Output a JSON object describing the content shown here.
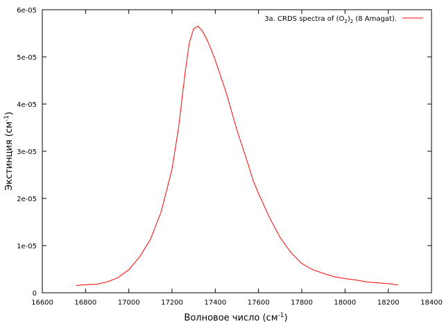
{
  "chart_data": {
    "type": "line",
    "xlabel": "Волновое число (см",
    "xlabel_sup": "-1",
    "xlabel_close": ")",
    "ylabel": "Экстинция (см",
    "ylabel_sup": "-1",
    "ylabel_close": ")",
    "xlim": [
      16600,
      18400
    ],
    "ylim": [
      0,
      6e-05
    ],
    "x_ticks": [
      {
        "value": 16600,
        "label": "16600"
      },
      {
        "value": 16800,
        "label": "16800"
      },
      {
        "value": 17000,
        "label": "17000"
      },
      {
        "value": 17200,
        "label": "17200"
      },
      {
        "value": 17400,
        "label": "17400"
      },
      {
        "value": 17600,
        "label": "17600"
      },
      {
        "value": 17800,
        "label": "17800"
      },
      {
        "value": 18000,
        "label": "18000"
      },
      {
        "value": 18200,
        "label": "18200"
      },
      {
        "value": 18400,
        "label": "18400"
      }
    ],
    "y_ticks": [
      {
        "value": 0,
        "label": "0"
      },
      {
        "value": 1e-05,
        "label": "1e-05"
      },
      {
        "value": 2e-05,
        "label": "2e-05"
      },
      {
        "value": 3e-05,
        "label": "3e-05"
      },
      {
        "value": 4e-05,
        "label": "4e-05"
      },
      {
        "value": 5e-05,
        "label": "5e-05"
      },
      {
        "value": 6e-05,
        "label": "6e-05"
      }
    ],
    "grid": false,
    "legend_position": "top-right",
    "series": [
      {
        "name_parts": {
          "prefix": "3a. CRDS spectra of (O",
          "sub1": "2",
          "mid": ")",
          "sub2": "2",
          "suffix": " (8 Amagat)."
        },
        "color": "#ff0000",
        "x": [
          16755,
          16800,
          16850,
          16900,
          16950,
          17000,
          17050,
          17100,
          17150,
          17200,
          17230,
          17260,
          17280,
          17300,
          17320,
          17340,
          17360,
          17380,
          17400,
          17450,
          17500,
          17550,
          17575,
          17600,
          17650,
          17700,
          17750,
          17800,
          17850,
          17900,
          17950,
          18000,
          18050,
          18100,
          18150,
          18200,
          18245
        ],
        "y": [
          1.55e-06,
          1.7e-06,
          1.8e-06,
          2.3e-06,
          3.2e-06,
          4.9e-06,
          7.6e-06,
          1.13e-05,
          1.72e-05,
          2.62e-05,
          3.5e-05,
          4.65e-05,
          5.3e-05,
          5.6e-05,
          5.65e-05,
          5.55e-05,
          5.38e-05,
          5.17e-05,
          4.93e-05,
          4.25e-05,
          3.45e-05,
          2.75e-05,
          2.38e-05,
          2.1e-05,
          1.6e-05,
          1.17e-05,
          8.5e-06,
          6.2e-06,
          4.9e-06,
          4.1e-06,
          3.4e-06,
          3e-06,
          2.7e-06,
          2.3e-06,
          2.1e-06,
          1.95e-06,
          1.65e-06
        ]
      }
    ]
  }
}
